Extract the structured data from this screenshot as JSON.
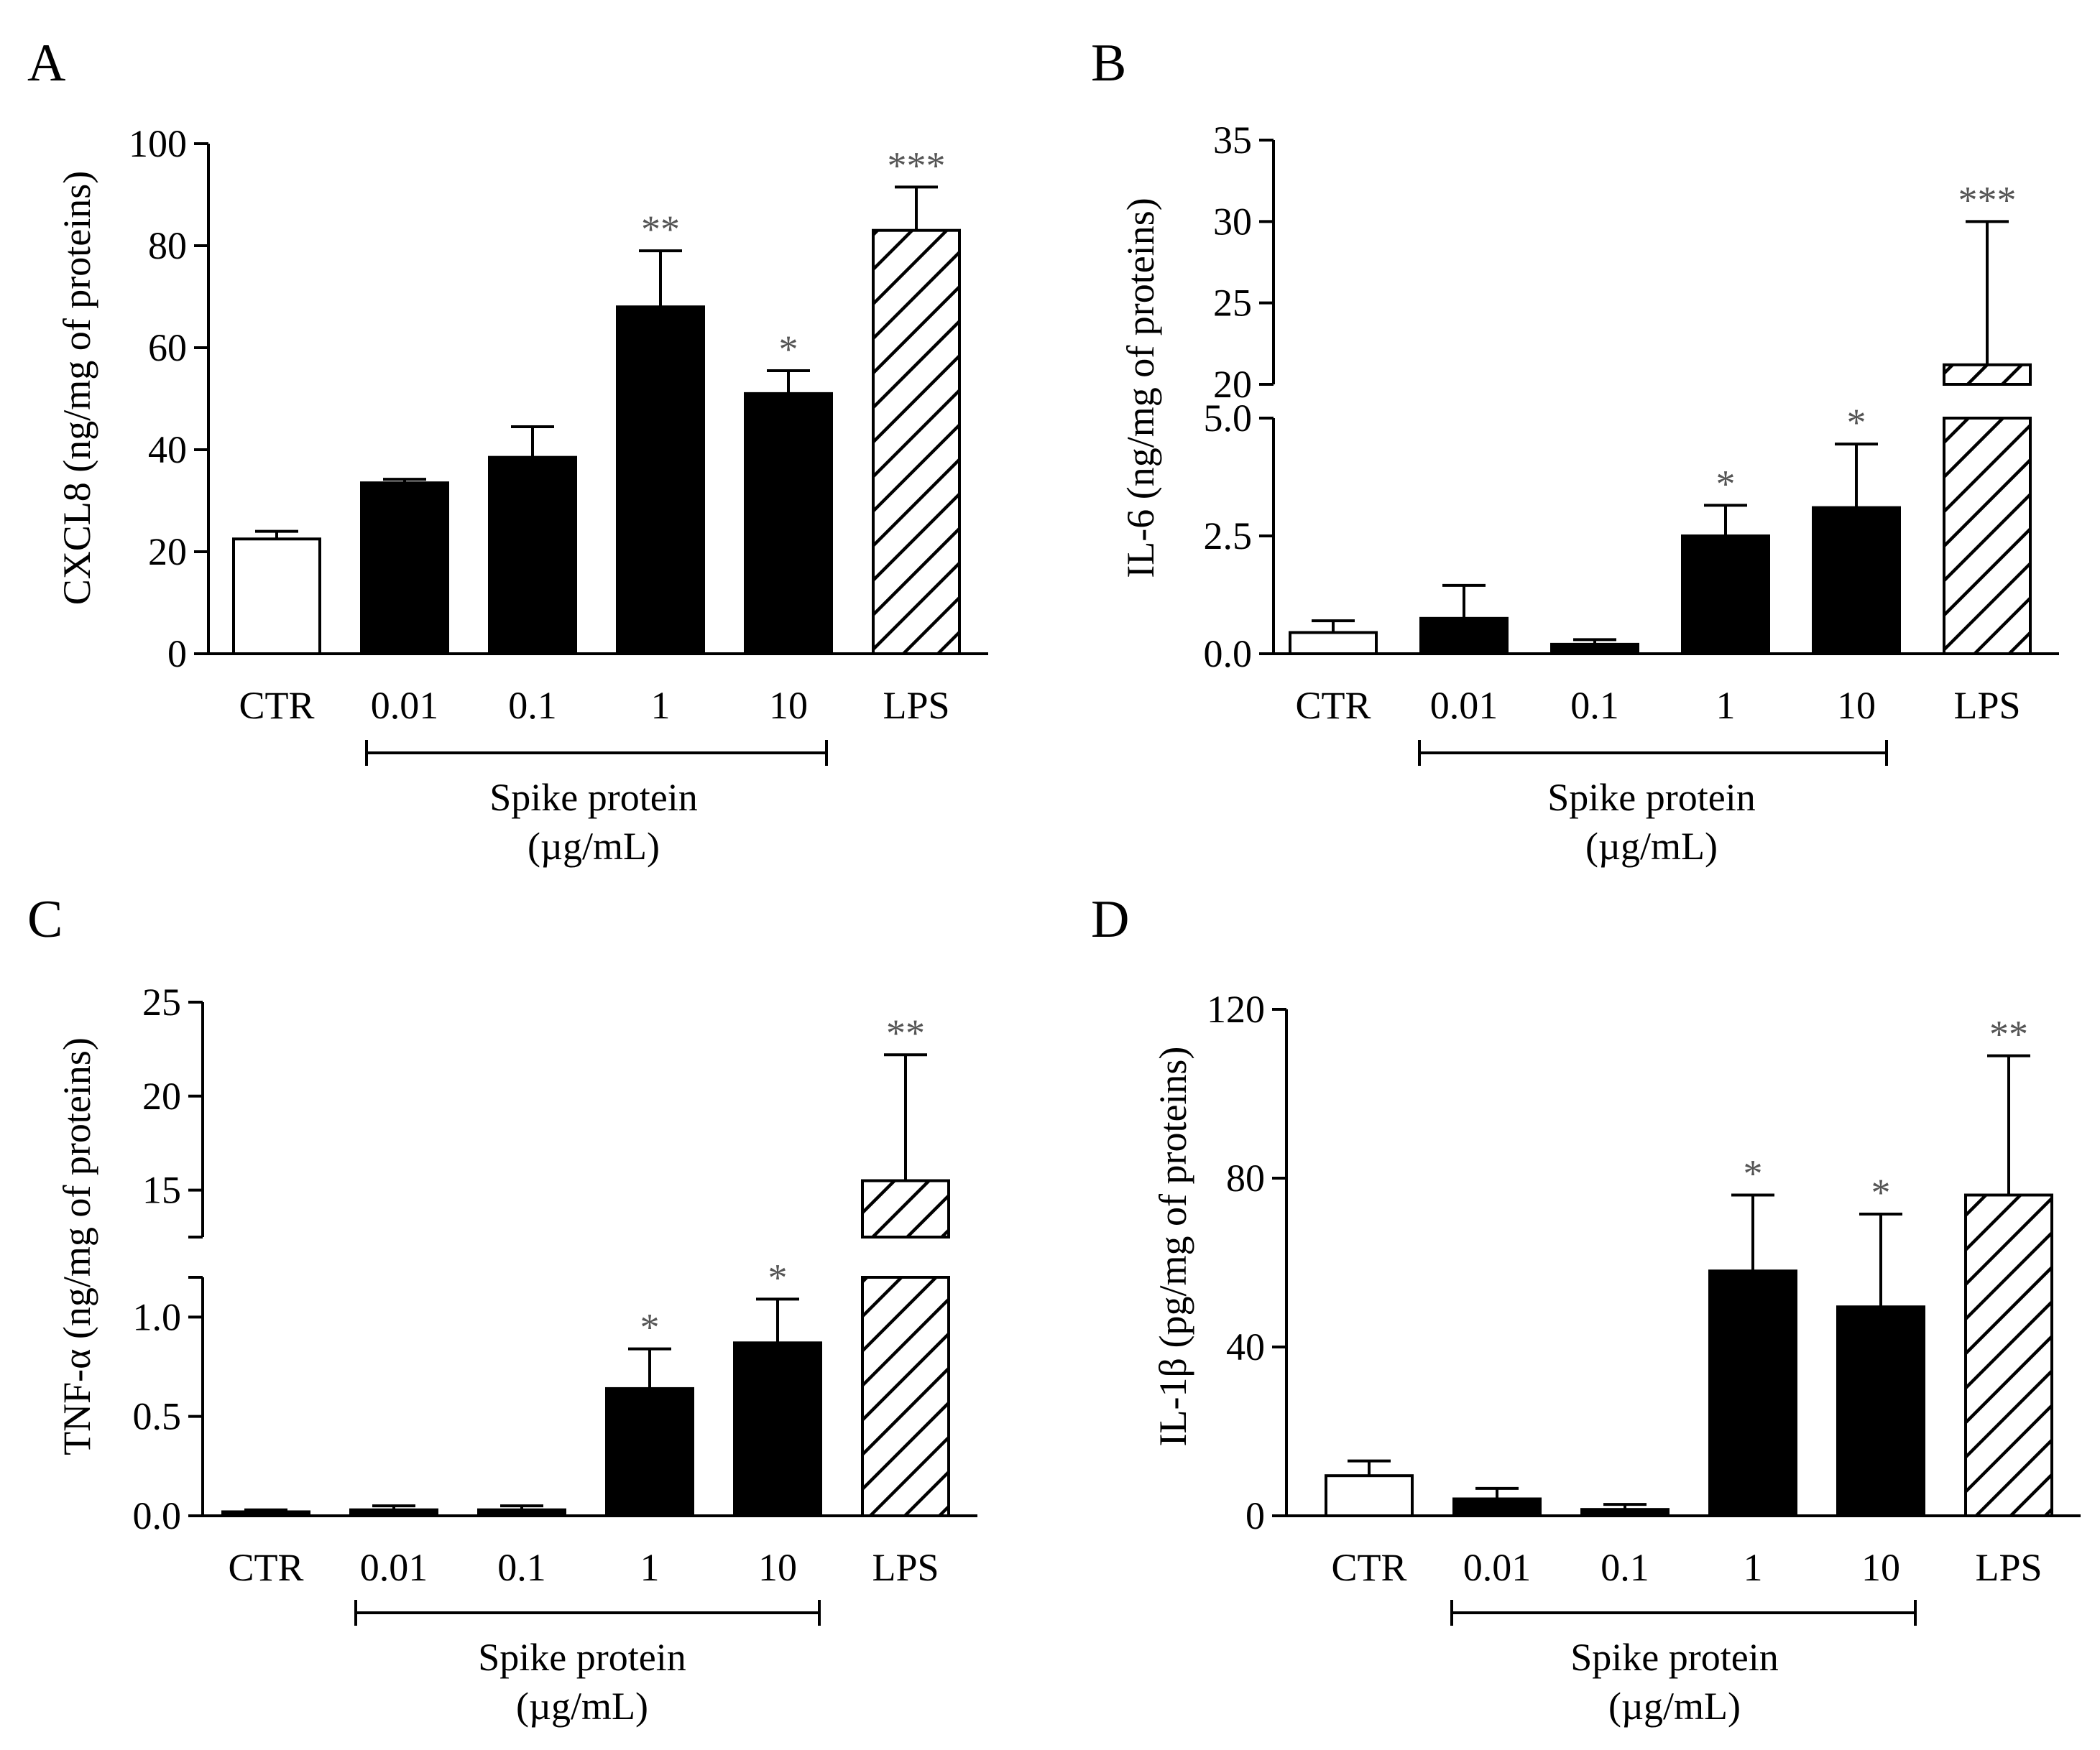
{
  "figure": {
    "group_label": "Spike protein",
    "group_unit": "(µg/mL)"
  },
  "chart_data": [
    {
      "panel": "A",
      "type": "bar",
      "ylabel": "CXCL8 (ng/mg of proteins)",
      "categories": [
        "CTR",
        "0.01",
        "0.1",
        "1",
        "10",
        "LPS"
      ],
      "values": [
        22.5,
        33.5,
        38.5,
        68,
        51,
        83
      ],
      "errors": [
        1.5,
        0.7,
        6,
        11,
        4.5,
        8.5
      ],
      "significance": [
        "",
        "",
        "",
        "**",
        "*",
        "***"
      ],
      "fills": [
        "white",
        "black",
        "black",
        "black",
        "black",
        "hatch"
      ],
      "segments": [
        {
          "range": [
            0,
            100
          ],
          "ticks": [
            0,
            20,
            40,
            60,
            80,
            100
          ],
          "tick_labels": [
            "0",
            "20",
            "40",
            "60",
            "80",
            "100"
          ]
        }
      ]
    },
    {
      "panel": "B",
      "type": "bar",
      "ylabel": "IL-6 (ng/mg of proteins)",
      "categories": [
        "CTR",
        "0.01",
        "0.1",
        "1",
        "10",
        "LPS"
      ],
      "values": [
        0.45,
        0.75,
        0.2,
        2.5,
        3.1,
        21.2
      ],
      "errors": [
        0.25,
        0.7,
        0.1,
        0.65,
        1.35,
        8.8
      ],
      "significance": [
        "",
        "",
        "",
        "*",
        "*",
        "***"
      ],
      "fills": [
        "white",
        "black",
        "black",
        "black",
        "black",
        "hatch"
      ],
      "segments": [
        {
          "range": [
            0,
            5
          ],
          "ticks": [
            0,
            2.5,
            5
          ],
          "tick_labels": [
            "0.0",
            "2.5",
            "5.0"
          ]
        },
        {
          "range": [
            20,
            35
          ],
          "ticks": [
            20,
            25,
            30,
            35
          ],
          "tick_labels": [
            "20",
            "25",
            "30",
            "35"
          ]
        }
      ]
    },
    {
      "panel": "C",
      "type": "bar",
      "ylabel": "TNF-α (ng/mg of proteins)",
      "categories": [
        "CTR",
        "0.01",
        "0.1",
        "1",
        "10",
        "LPS"
      ],
      "values": [
        0.02,
        0.03,
        0.03,
        0.64,
        0.87,
        15.5
      ],
      "errors": [
        0.01,
        0.02,
        0.02,
        0.2,
        0.22,
        6.7
      ],
      "significance": [
        "",
        "",
        "",
        "*",
        "*",
        "**"
      ],
      "fills": [
        "black",
        "black",
        "black",
        "black",
        "black",
        "hatch"
      ],
      "segments": [
        {
          "range": [
            0,
            1.2
          ],
          "ticks": [
            0,
            0.5,
            1
          ],
          "tick_labels": [
            "0.0",
            "0.5",
            "1.0"
          ]
        },
        {
          "range": [
            12.5,
            25
          ],
          "ticks": [
            15,
            20,
            25
          ],
          "tick_labels": [
            "15",
            "20",
            "25"
          ]
        }
      ]
    },
    {
      "panel": "D",
      "type": "bar",
      "ylabel": "IL-1β (pg/mg of proteins)",
      "categories": [
        "CTR",
        "0.01",
        "0.1",
        "1",
        "10",
        "LPS"
      ],
      "values": [
        9.5,
        4,
        1.5,
        58,
        49.5,
        76
      ],
      "errors": [
        3.5,
        2.5,
        1.2,
        18,
        22,
        33
      ],
      "significance": [
        "",
        "",
        "",
        "*",
        "*",
        "**"
      ],
      "fills": [
        "white",
        "black",
        "black",
        "black",
        "black",
        "hatch"
      ],
      "segments": [
        {
          "range": [
            0,
            120
          ],
          "ticks": [
            0,
            40,
            80,
            120
          ],
          "tick_labels": [
            "0",
            "40",
            "80",
            "120"
          ]
        }
      ]
    }
  ]
}
